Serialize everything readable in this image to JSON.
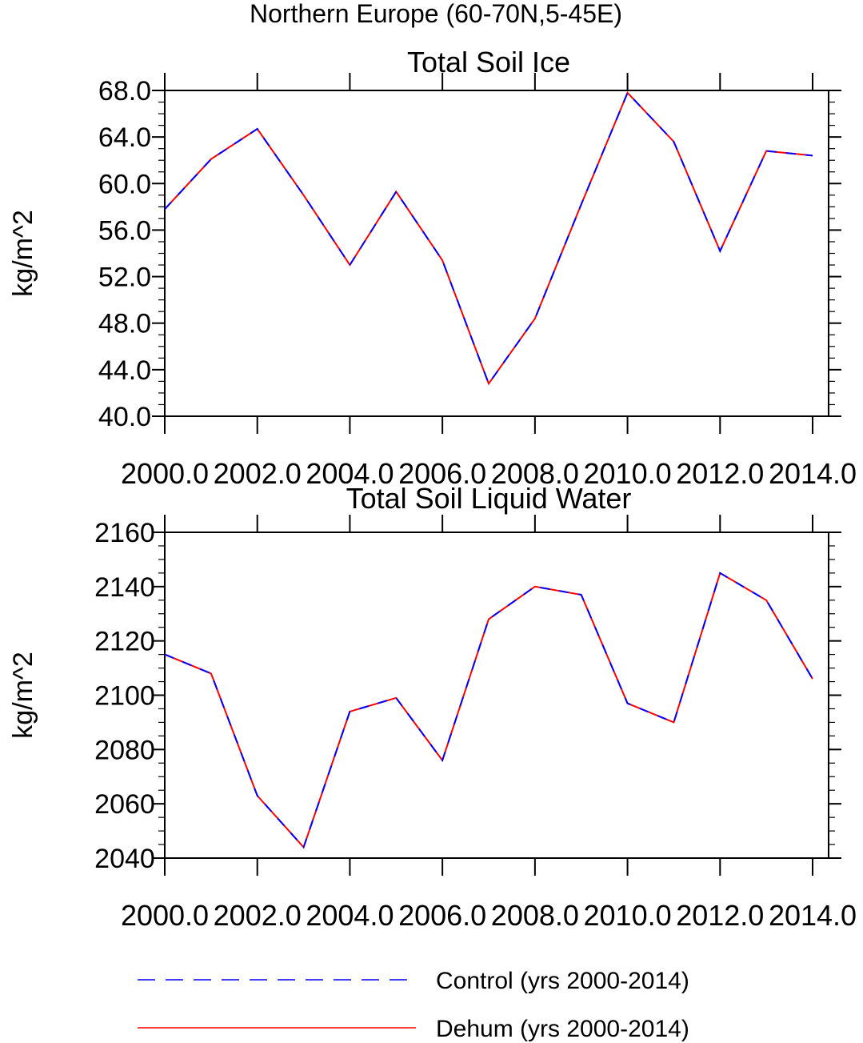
{
  "figure": {
    "suptitle": "Northern Europe (60-70N,5-45E)",
    "legend": [
      {
        "label": "Control (yrs 2000-2014)",
        "color": "#0000ff",
        "style": "dashed"
      },
      {
        "label": "Dehum (yrs 2000-2014)",
        "color": "#ff0000",
        "style": "solid"
      }
    ]
  },
  "chart_data": [
    {
      "type": "line",
      "title": "Total Soil Ice",
      "xlabel": "",
      "ylabel": "kg/m^2",
      "xlim": [
        2000,
        2014
      ],
      "ylim": [
        40,
        68
      ],
      "x_ticks": [
        2000,
        2002,
        2004,
        2006,
        2008,
        2010,
        2012,
        2014
      ],
      "x_tick_labels": [
        "2000.0",
        "2002.0",
        "2004.0",
        "2006.0",
        "2008.0",
        "2010.0",
        "2012.0",
        "2014.0"
      ],
      "y_ticks": [
        40,
        44,
        48,
        52,
        56,
        60,
        64,
        68
      ],
      "y_tick_labels": [
        "40.0",
        "44.0",
        "48.0",
        "52.0",
        "56.0",
        "60.0",
        "64.0",
        "68.0"
      ],
      "y_minor_step": 1,
      "x": [
        2000,
        2001,
        2002,
        2003,
        2004,
        2005,
        2006,
        2007,
        2008,
        2009,
        2010,
        2011,
        2012,
        2013,
        2014
      ],
      "series": [
        {
          "values": [
            57.8,
            62.1,
            64.7,
            59.0,
            53.0,
            59.3,
            53.4,
            42.8,
            48.4,
            58.2,
            67.8,
            63.6,
            54.2,
            62.8,
            62.4
          ]
        },
        {
          "values": [
            57.8,
            62.1,
            64.7,
            59.0,
            53.0,
            59.3,
            53.4,
            42.8,
            48.4,
            58.2,
            67.8,
            63.6,
            54.2,
            62.8,
            62.4
          ]
        }
      ]
    },
    {
      "type": "line",
      "title": "Total Soil Liquid Water",
      "xlabel": "",
      "ylabel": "kg/m^2",
      "xlim": [
        2000,
        2014
      ],
      "ylim": [
        2040,
        2160
      ],
      "x_ticks": [
        2000,
        2002,
        2004,
        2006,
        2008,
        2010,
        2012,
        2014
      ],
      "x_tick_labels": [
        "2000.0",
        "2002.0",
        "2004.0",
        "2006.0",
        "2008.0",
        "2010.0",
        "2012.0",
        "2014.0"
      ],
      "y_ticks": [
        2040,
        2060,
        2080,
        2100,
        2120,
        2140,
        2160
      ],
      "y_tick_labels": [
        "2040",
        "2060",
        "2080",
        "2100",
        "2120",
        "2140",
        "2160"
      ],
      "y_minor_step": 5,
      "x": [
        2000,
        2001,
        2002,
        2003,
        2004,
        2005,
        2006,
        2007,
        2008,
        2009,
        2010,
        2011,
        2012,
        2013,
        2014
      ],
      "series": [
        {
          "values": [
            2115,
            2108,
            2063,
            2044,
            2094,
            2099,
            2076,
            2128,
            2140,
            2137,
            2097,
            2090,
            2145,
            2135,
            2106
          ]
        },
        {
          "values": [
            2115,
            2108,
            2063,
            2044,
            2094,
            2099,
            2076,
            2128,
            2140,
            2137,
            2097,
            2090,
            2145,
            2135,
            2106
          ]
        }
      ]
    }
  ]
}
